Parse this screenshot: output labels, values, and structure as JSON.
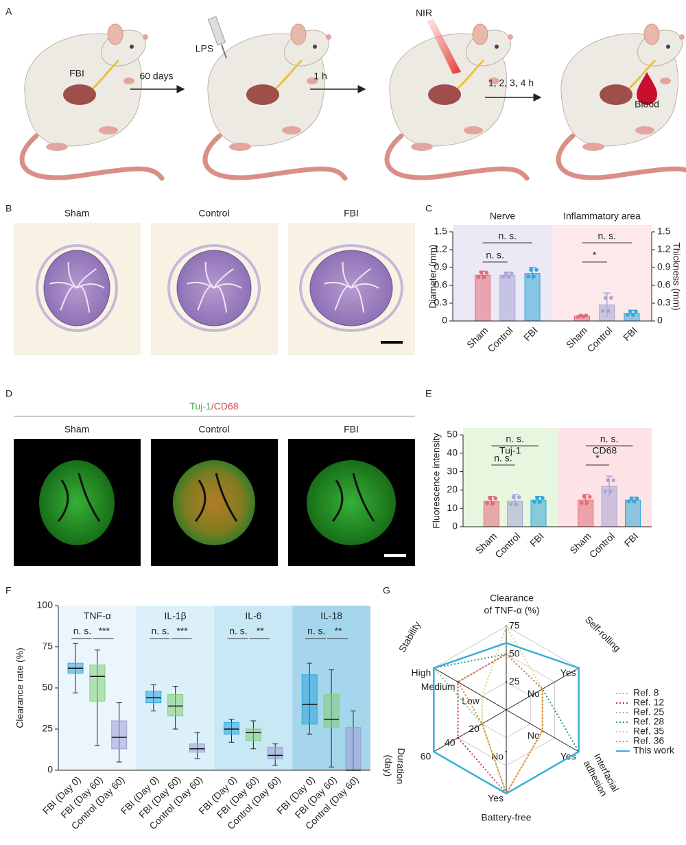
{
  "panel_labels": [
    "A",
    "B",
    "C",
    "D",
    "E",
    "F",
    "G"
  ],
  "scheme": {
    "fbi": "FBI",
    "step1": "60 days",
    "lps": "LPS",
    "step2": "1 h",
    "nir": "NIR",
    "step3": "1, 2, 3, 4 h",
    "blood": "Blood"
  },
  "histology_b": {
    "titles": [
      "Sham",
      "Control",
      "FBI"
    ]
  },
  "histology_d": {
    "stain": [
      "Tuj-1",
      "/CD68"
    ],
    "titles": [
      "Sham",
      "Control",
      "FBI"
    ]
  },
  "chart_data": [
    {
      "type": "bar",
      "ylabel": "Diameter (mm)",
      "y2label": "Thickness (mm)",
      "ylim": [
        0,
        1.5
      ],
      "yticks": [
        0,
        0.3,
        0.6,
        0.9,
        1.2,
        1.5
      ],
      "y2lim": [
        0,
        1.5
      ],
      "y2ticks": [
        0,
        0.3,
        0.6,
        0.9,
        1.2,
        1.5
      ],
      "bar_colors": [
        "#e36b78",
        "#a7a5d6",
        "#33a7d9"
      ],
      "groups": [
        {
          "name": "Nerve",
          "color": "#a43bb5",
          "background": "#ece8f5",
          "categories": [
            "Sham",
            "Control",
            "FBI"
          ],
          "values": [
            0.77,
            0.77,
            0.8
          ],
          "errors": [
            0.07,
            0.05,
            0.1
          ],
          "annotations": [
            "n. s.",
            "n. s."
          ]
        },
        {
          "name": "Inflammatory area",
          "color": "#d9434f",
          "background": "#fde9eb",
          "axis": "y2",
          "categories": [
            "Sham",
            "Control",
            "FBI"
          ],
          "values": [
            0.08,
            0.27,
            0.13
          ],
          "errors": [
            0.02,
            0.2,
            0.05
          ],
          "annotations": [
            "n. s.",
            "*"
          ]
        }
      ]
    },
    {
      "type": "bar",
      "ylabel": "Fluorescence intensity",
      "ylim": [
        0,
        50
      ],
      "yticks": [
        0,
        10,
        20,
        30,
        40,
        50
      ],
      "bar_colors": [
        "#e36b78",
        "#a7a5d6",
        "#33a7d9"
      ],
      "groups": [
        {
          "name": "Tuj-1",
          "color": "#3dae49",
          "background": "#e7f7df",
          "categories": [
            "Sham",
            "Control",
            "FBI"
          ],
          "values": [
            14,
            14,
            14.5
          ],
          "errors": [
            2.5,
            3.5,
            2
          ],
          "annotations": [
            "n. s.",
            "n. s."
          ]
        },
        {
          "name": "CD68",
          "color": "#d9434f",
          "background": "#fde3e5",
          "categories": [
            "Sham",
            "Control",
            "FBI"
          ],
          "values": [
            14.5,
            22,
            14.5
          ],
          "errors": [
            3,
            5.5,
            1.5
          ],
          "annotations": [
            "n. s.",
            "*"
          ]
        }
      ]
    },
    {
      "type": "box",
      "ylabel": "Clearance rate (%)",
      "ylim": [
        0,
        100
      ],
      "yticks": [
        0,
        25,
        50,
        75,
        100
      ],
      "categories": [
        "FBI (Day 0)",
        "FBI (Day 60)",
        "Control (Day 60)"
      ],
      "colors": [
        "#2ea4dc",
        "#7fcf7a",
        "#9c9fd6"
      ],
      "groups": [
        {
          "name": "TNF-α",
          "background": "#eaf6fc",
          "annotations": [
            "n. s.",
            "***"
          ],
          "boxes": [
            {
              "min": 47,
              "q1": 59,
              "median": 62,
              "q3": 65,
              "max": 77
            },
            {
              "min": 15,
              "q1": 42,
              "median": 57,
              "q3": 64,
              "max": 73
            },
            {
              "min": 5,
              "q1": 13,
              "median": 20,
              "q3": 30,
              "max": 41
            }
          ]
        },
        {
          "name": "IL-1β",
          "background": "#dcf0fa",
          "annotations": [
            "n. s.",
            "***"
          ],
          "boxes": [
            {
              "min": 36,
              "q1": 41,
              "median": 44,
              "q3": 48,
              "max": 52
            },
            {
              "min": 25,
              "q1": 33,
              "median": 39,
              "q3": 46,
              "max": 51
            },
            {
              "min": 7,
              "q1": 11,
              "median": 13,
              "q3": 16,
              "max": 23
            }
          ]
        },
        {
          "name": "IL-6",
          "background": "#c9e8f6",
          "annotations": [
            "n. s.",
            "**"
          ],
          "boxes": [
            {
              "min": 17,
              "q1": 22,
              "median": 25,
              "q3": 29,
              "max": 31
            },
            {
              "min": 13,
              "q1": 18,
              "median": 23,
              "q3": 25,
              "max": 30
            },
            {
              "min": 3,
              "q1": 7,
              "median": 9,
              "q3": 14,
              "max": 16
            }
          ]
        },
        {
          "name": "IL-18",
          "background": "#a6d6ec",
          "annotations": [
            "n. s.",
            "**"
          ],
          "boxes": [
            {
              "min": 22,
              "q1": 28,
              "median": 40,
              "q3": 58,
              "max": 65
            },
            {
              "min": 2,
              "q1": 26,
              "median": 31,
              "q3": 46,
              "max": 61
            },
            {
              "min": 0,
              "q1": 0,
              "median": 0,
              "q3": 26,
              "max": 36
            }
          ]
        }
      ]
    },
    {
      "type": "radar",
      "axes": [
        {
          "label": [
            "Clearance",
            "of TNF-α (%)"
          ],
          "lim": [
            0,
            75
          ],
          "ticks": [
            25,
            50,
            75
          ]
        },
        {
          "label": [
            "Self-rolling"
          ],
          "lim": [
            0,
            2
          ],
          "ticks": [
            {
              "value": 1,
              "label": "No"
            },
            {
              "value": 2,
              "label": "Yes"
            }
          ]
        },
        {
          "label": [
            "Interfacial",
            "adhesion"
          ],
          "lim": [
            0,
            2
          ],
          "ticks": [
            {
              "value": 1,
              "label": "No"
            },
            {
              "value": 2,
              "label": "Yes"
            }
          ]
        },
        {
          "label": [
            "Battery-free"
          ],
          "lim": [
            0,
            2
          ],
          "ticks": [
            {
              "value": 1,
              "label": "No"
            },
            {
              "value": 2,
              "label": "Yes"
            }
          ]
        },
        {
          "label": [
            "Duration",
            "(day)"
          ],
          "lim": [
            0,
            60
          ],
          "ticks": [
            20,
            40,
            60
          ]
        },
        {
          "label": [
            "Stability"
          ],
          "lim": [
            0,
            3
          ],
          "ticks": [
            {
              "value": 1,
              "label": "Low"
            },
            {
              "value": 2,
              "label": "Medium"
            },
            {
              "value": 3,
              "label": "High"
            }
          ]
        }
      ],
      "series": [
        {
          "name": "Ref. 8",
          "color": "#e9a3b3",
          "line_style": "dotted",
          "values": [
            50,
            1,
            1,
            2,
            20,
            2
          ]
        },
        {
          "name": "Ref. 12",
          "color": "#c9307a",
          "line_style": "dotted",
          "values": [
            50,
            1,
            1,
            2,
            40,
            2
          ]
        },
        {
          "name": "Ref. 25",
          "color": "#86c97a",
          "line_style": "dotted",
          "values": [
            60,
            2,
            2,
            2,
            20,
            3
          ]
        },
        {
          "name": "Ref. 28",
          "color": "#2f9a6c",
          "line_style": "dotted",
          "values": [
            50,
            1,
            2,
            2,
            60,
            3
          ]
        },
        {
          "name": "Ref. 35",
          "color": "#e3cf73",
          "line_style": "dotted",
          "values": [
            75,
            1,
            1,
            2,
            20,
            1
          ]
        },
        {
          "name": "Ref. 36",
          "color": "#e08a45",
          "line_style": "dotted",
          "values": [
            50,
            1,
            1,
            2,
            20,
            2
          ]
        },
        {
          "name": "This work",
          "color": "#35b0d8",
          "line_style": "solid",
          "values": [
            60,
            2,
            2,
            2,
            60,
            3
          ]
        }
      ]
    }
  ]
}
